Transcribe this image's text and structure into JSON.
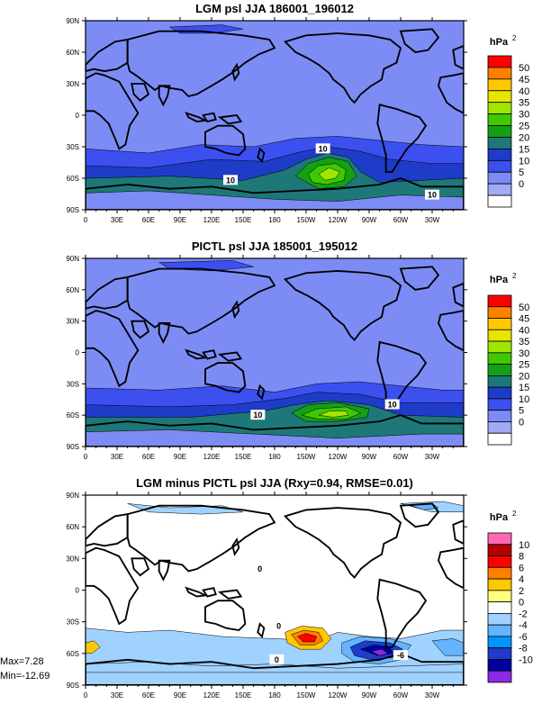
{
  "panels": [
    {
      "title": "LGM psl JJA 186001_196012",
      "unit_base": "hPa",
      "unit_exp": "2",
      "colorbar": {
        "levels": [
          "50",
          "45",
          "40",
          "35",
          "30",
          "25",
          "20",
          "15",
          "10",
          "5",
          "0"
        ],
        "colors": [
          "#ff0000",
          "#ff8000",
          "#ffc800",
          "#e6e600",
          "#a0e600",
          "#40c800",
          "#14a014",
          "#1e7878",
          "#1e3cc8",
          "#3c50f0",
          "#7d8cf5",
          "#a0aaf5",
          "#ffffff"
        ]
      },
      "contour_labels": [
        "10",
        "10",
        "10"
      ]
    },
    {
      "title": "PICTL psl JJA 185001_195012",
      "unit_base": "hPa",
      "unit_exp": "2",
      "colorbar": {
        "levels": [
          "50",
          "45",
          "40",
          "35",
          "30",
          "25",
          "20",
          "15",
          "10",
          "5",
          "0"
        ],
        "colors": [
          "#ff0000",
          "#ff8000",
          "#ffc800",
          "#e6e600",
          "#a0e600",
          "#40c800",
          "#14a014",
          "#1e7878",
          "#1e3cc8",
          "#3c50f0",
          "#7d8cf5",
          "#a0aaf5",
          "#ffffff"
        ]
      },
      "contour_labels": [
        "10",
        "10"
      ]
    },
    {
      "title": "LGM minus PICTL psl JJA (Rxy=0.94, RMSE=0.01)",
      "unit_base": "hPa",
      "unit_exp": "2",
      "colorbar": {
        "levels": [
          "10",
          "8",
          "6",
          "4",
          "2",
          "0",
          "-2",
          "-4",
          "-6",
          "-8",
          "-10"
        ],
        "colors": [
          "#ff69b4",
          "#b40000",
          "#ff0000",
          "#ff8000",
          "#ffc800",
          "#ffff80",
          "#ffffff",
          "#a0d2ff",
          "#64b4ff",
          "#0096ff",
          "#1e3cc8",
          "#0000a0",
          "#8c28e6"
        ]
      },
      "contour_labels": [
        "0",
        "0",
        "0",
        "-6"
      ],
      "stats": {
        "max": "Max=7.28",
        "min": "Min=-12.69"
      }
    }
  ],
  "lat_ticks": [
    "90N",
    "60N",
    "30N",
    "0",
    "30S",
    "60S",
    "90S"
  ],
  "lon_ticks": [
    "0",
    "30E",
    "60E",
    "90E",
    "120E",
    "150E",
    "180",
    "150W",
    "120W",
    "90W",
    "60W",
    "30W"
  ],
  "colors": {
    "land_line": "#000000",
    "background": "#ffffff"
  }
}
